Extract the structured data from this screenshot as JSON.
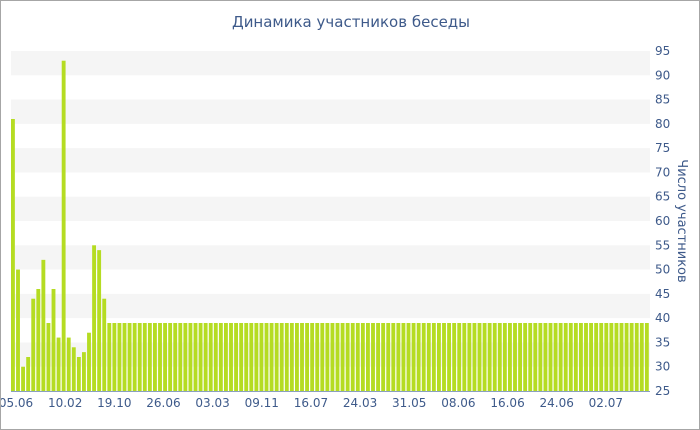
{
  "chart_data": {
    "type": "bar",
    "title": "Динамика участников беседы",
    "xlabel": "",
    "ylabel": "Число участников",
    "ylim": [
      25,
      95
    ],
    "y_ticks": [
      25,
      30,
      35,
      40,
      45,
      50,
      55,
      60,
      65,
      70,
      75,
      80,
      85,
      90,
      95
    ],
    "x_tick_labels": [
      "05.06",
      "10.02",
      "19.10",
      "26.06",
      "03.03",
      "09.11",
      "16.07",
      "24.03",
      "31.05",
      "08.06",
      "16.06",
      "24.06",
      "02.07"
    ],
    "y_axis_side": "right",
    "grid": "alternating horizontal bands",
    "bar_color": "#b5dc22",
    "band_color": "#f5f5f5",
    "text_color": "#3e5a8a",
    "values": [
      81,
      50,
      30,
      32,
      44,
      46,
      52,
      39,
      46,
      36,
      93,
      36,
      34,
      32,
      33,
      37,
      55,
      54,
      44,
      39,
      39,
      39,
      39,
      39,
      39,
      39,
      39,
      39,
      39,
      39,
      39,
      39,
      39,
      39,
      39,
      39,
      39,
      39,
      39,
      39,
      39,
      39,
      39,
      39,
      39,
      39,
      39,
      39,
      39,
      39,
      39,
      39,
      39,
      39,
      39,
      39,
      39,
      39,
      39,
      39,
      39,
      39,
      39,
      39,
      39,
      39,
      39,
      39,
      39,
      39,
      39,
      39,
      39,
      39,
      39,
      39,
      39,
      39,
      39,
      39,
      39,
      39,
      39,
      39,
      39,
      39,
      39,
      39,
      39,
      39,
      39,
      39,
      39,
      39,
      39,
      39,
      39,
      39,
      39,
      39,
      39,
      39,
      39,
      39,
      39,
      39,
      39,
      39,
      39,
      39,
      39,
      39,
      39,
      39,
      39,
      39,
      39,
      39,
      39,
      39,
      39,
      39,
      39,
      39,
      39,
      39
    ]
  }
}
